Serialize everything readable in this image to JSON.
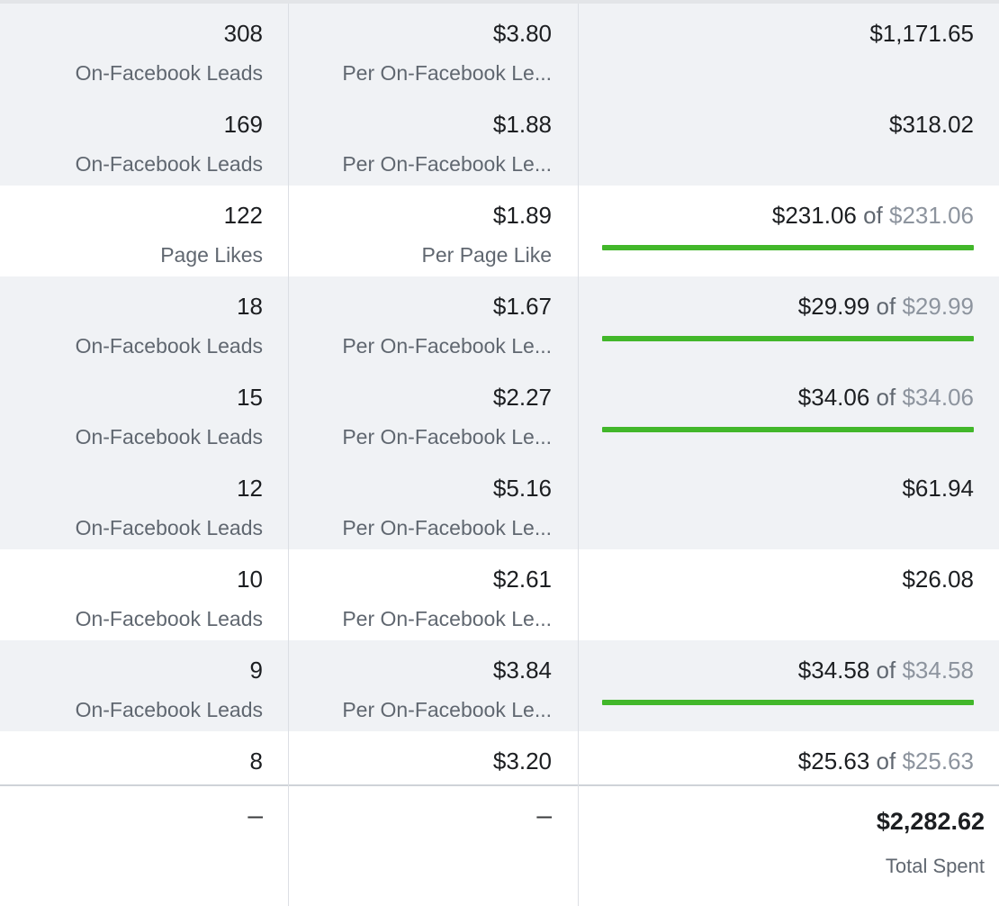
{
  "rows": [
    {
      "results": "308",
      "results_label": "On-Facebook Leads",
      "cost": "$3.80",
      "cost_label": "Per On-Facebook Le...",
      "spent": "$1,171.65",
      "of_text": "",
      "budget": "",
      "progress": null
    },
    {
      "results": "169",
      "results_label": "On-Facebook Leads",
      "cost": "$1.88",
      "cost_label": "Per On-Facebook Le...",
      "spent": "$318.02",
      "of_text": "",
      "budget": "",
      "progress": null
    },
    {
      "results": "122",
      "results_label": "Page Likes",
      "cost": "$1.89",
      "cost_label": "Per Page Like",
      "spent": "$231.06",
      "of_text": " of ",
      "budget": "$231.06",
      "progress": 1.0
    },
    {
      "results": "18",
      "results_label": "On-Facebook Leads",
      "cost": "$1.67",
      "cost_label": "Per On-Facebook Le...",
      "spent": "$29.99",
      "of_text": " of ",
      "budget": "$29.99",
      "progress": 1.0
    },
    {
      "results": "15",
      "results_label": "On-Facebook Leads",
      "cost": "$2.27",
      "cost_label": "Per On-Facebook Le...",
      "spent": "$34.06",
      "of_text": " of ",
      "budget": "$34.06",
      "progress": 1.0
    },
    {
      "results": "12",
      "results_label": "On-Facebook Leads",
      "cost": "$5.16",
      "cost_label": "Per On-Facebook Le...",
      "spent": "$61.94",
      "of_text": "",
      "budget": "",
      "progress": null
    },
    {
      "results": "10",
      "results_label": "On-Facebook Leads",
      "cost": "$2.61",
      "cost_label": "Per On-Facebook Le...",
      "spent": "$26.08",
      "of_text": "",
      "budget": "",
      "progress": null
    },
    {
      "results": "9",
      "results_label": "On-Facebook Leads",
      "cost": "$3.84",
      "cost_label": "Per On-Facebook Le...",
      "spent": "$34.58",
      "of_text": " of ",
      "budget": "$34.58",
      "progress": 1.0
    },
    {
      "results": "8",
      "results_label": "",
      "cost": "$3.20",
      "cost_label": "",
      "spent": "$25.63",
      "of_text": " of ",
      "budget": "$25.63",
      "progress": null
    }
  ],
  "totals": {
    "results": "–",
    "cost": "–",
    "spent": "$2,282.62",
    "spent_label": "Total Spent"
  },
  "colors": {
    "progress_bar": "#42b72a",
    "row_alt": "#f0f2f5"
  }
}
